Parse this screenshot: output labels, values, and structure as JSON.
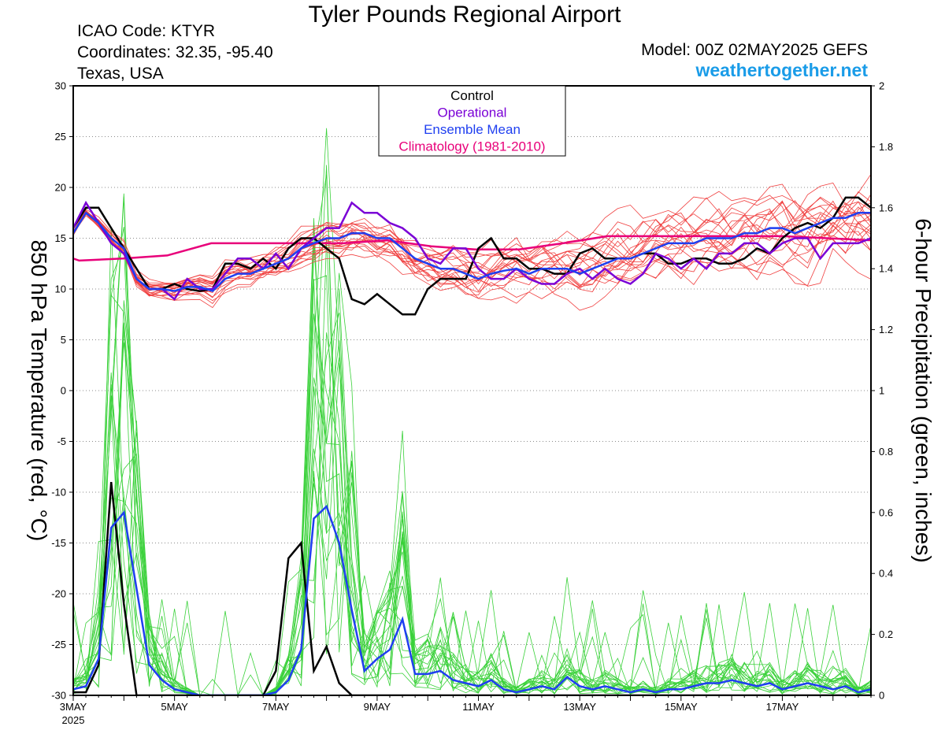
{
  "header": {
    "title": "Tyler Pounds Regional Airport",
    "icao": "ICAO Code: KTYR",
    "coordinates": "Coordinates: 32.35, -95.40",
    "region": "Texas, USA",
    "model": "Model: 00Z 02MAY2025 GEFS",
    "website": "weathertogether.net"
  },
  "colors": {
    "control": "#000000",
    "operational": "#7a00d6",
    "ensemble_mean": "#1f3ff0",
    "climatology": "#e8007a",
    "members_temp": "#f04040",
    "members_precip": "#3ad13a",
    "website": "#1a9ce8"
  },
  "chart_data": {
    "type": "line",
    "title": "Tyler Pounds Regional Airport",
    "ylabel": "850 hPa Temperature (red, °C)",
    "y2label": "6-hour Precipitation (green, inches)",
    "ylim": [
      -30,
      30
    ],
    "y2lim": [
      0,
      2
    ],
    "yticks": [
      -30,
      -25,
      -20,
      -15,
      -10,
      -5,
      0,
      5,
      10,
      15,
      20,
      25,
      30
    ],
    "y2ticks": [
      0,
      0.2,
      0.4,
      0.6,
      0.8,
      1,
      1.2,
      1.4,
      1.6,
      1.8,
      2
    ],
    "xlim": [
      1.0,
      16.75
    ],
    "x_units": "days since 02MAY2025 00Z (6-hourly)",
    "xticks": [
      {
        "day": 1,
        "label": "3MAY",
        "sublabel": "2025"
      },
      {
        "day": 3,
        "label": "5MAY",
        "sublabel": ""
      },
      {
        "day": 5,
        "label": "7MAY",
        "sublabel": ""
      },
      {
        "day": 7,
        "label": "9MAY",
        "sublabel": ""
      },
      {
        "day": 9,
        "label": "11MAY",
        "sublabel": ""
      },
      {
        "day": 11,
        "label": "13MAY",
        "sublabel": ""
      },
      {
        "day": 13,
        "label": "15MAY",
        "sublabel": ""
      },
      {
        "day": 15,
        "label": "17MAY",
        "sublabel": ""
      }
    ],
    "grid": true,
    "legend": {
      "placement": "top-center",
      "entries": [
        {
          "label": "Control",
          "color": "#000000"
        },
        {
          "label": "Operational",
          "color": "#7a00d6"
        },
        {
          "label": "Ensemble Mean",
          "color": "#1f3ff0"
        },
        {
          "label": "Climatology (1981-2010)",
          "color": "#e8007a"
        }
      ]
    },
    "temperature": {
      "control": [
        16,
        18,
        18,
        16,
        14,
        12,
        10,
        10,
        10.5,
        10,
        9.8,
        10,
        12.5,
        12.5,
        12,
        13,
        12,
        14,
        15,
        15,
        14,
        13,
        9,
        8.5,
        9.5,
        8.5,
        7.5,
        7.5,
        10,
        11,
        11,
        11,
        14,
        15,
        13,
        13,
        12,
        12,
        11.5,
        11.5,
        13.5,
        14,
        13,
        13,
        13,
        13.5,
        13.5,
        12.5,
        12.5,
        13,
        13,
        12.5,
        12.5,
        13,
        14,
        13.5,
        15,
        16,
        16.5,
        16,
        17,
        19,
        19,
        18,
        18,
        17.7
      ],
      "operational": [
        16,
        18.5,
        16.5,
        14.5,
        13.5,
        11,
        10,
        10,
        9,
        11,
        10,
        10,
        11.5,
        13,
        13,
        12,
        13.5,
        12,
        14,
        15,
        16,
        16,
        18.5,
        17.5,
        17.5,
        16.5,
        16,
        15,
        13,
        12.5,
        14,
        14,
        12,
        11,
        11,
        12,
        11,
        10.5,
        10.5,
        11.5,
        12,
        11,
        12,
        11,
        10.5,
        11.5,
        13.5,
        13,
        12,
        13,
        12,
        13.5,
        13.5,
        14.5,
        14.5,
        13.5,
        14.5,
        15,
        15,
        13,
        14.5,
        14.5,
        14.5,
        15,
        14,
        14.5,
        15,
        15
      ],
      "ensemble_mean": [
        15.5,
        17.5,
        16.5,
        15,
        14,
        11,
        10,
        10,
        9.8,
        10.2,
        10.2,
        9.8,
        11,
        11.5,
        11.5,
        12,
        12.5,
        13,
        14,
        14.5,
        15,
        15,
        15.5,
        15.5,
        15,
        15,
        14,
        13,
        12.5,
        12,
        12,
        11.5,
        11,
        11.5,
        11.8,
        12,
        11.5,
        12,
        12,
        12,
        11.5,
        12,
        12.5,
        13,
        13,
        13.5,
        14,
        14.5,
        14.5,
        14.5,
        15,
        15,
        15,
        15.5,
        15.5,
        16,
        16,
        15.5,
        16,
        16.5,
        17,
        17,
        17.5,
        17.5,
        17.5,
        17.5,
        17.8
      ],
      "climatology": [
        13,
        12.8,
        13,
        13.3,
        14.5,
        14.5,
        14.5,
        14.5,
        14.8,
        14.2,
        13.9,
        13.9,
        14.5,
        15.2,
        15.2,
        15.2,
        15.2,
        15.2,
        15,
        14.8
      ]
    },
    "precipitation": {
      "control": [
        0.01,
        0.01,
        0.1,
        0.7,
        0.3,
        0,
        0,
        0,
        0,
        0,
        0,
        0,
        0,
        0,
        0,
        0,
        0.08,
        0.45,
        0.5,
        0.08,
        0.16,
        0.04,
        0,
        0,
        0,
        0,
        0,
        0,
        0,
        0,
        0,
        0,
        0,
        0,
        0,
        0,
        0,
        0,
        0,
        0,
        0,
        0,
        0,
        0,
        0,
        0,
        0,
        0,
        0,
        0,
        0,
        0,
        0,
        0,
        0,
        0,
        0,
        0,
        0,
        0,
        0,
        0,
        0,
        0,
        0,
        0.09
      ],
      "ensemble_mean": [
        0.02,
        0.03,
        0.12,
        0.55,
        0.6,
        0.35,
        0.1,
        0.05,
        0.02,
        0.01,
        0,
        0,
        0,
        0,
        0,
        0,
        0.01,
        0.05,
        0.15,
        0.58,
        0.62,
        0.5,
        0.28,
        0.08,
        0.12,
        0.15,
        0.25,
        0.07,
        0.07,
        0.08,
        0.05,
        0.04,
        0.03,
        0.05,
        0.02,
        0.01,
        0.02,
        0.03,
        0.02,
        0.06,
        0.03,
        0.02,
        0.03,
        0.02,
        0.01,
        0.02,
        0.01,
        0.02,
        0.02,
        0.03,
        0.04,
        0.04,
        0.05,
        0.04,
        0.03,
        0.04,
        0.02,
        0.03,
        0.04,
        0.03,
        0.02,
        0.03,
        0.01,
        0.02,
        0.02,
        0.03
      ]
    }
  }
}
